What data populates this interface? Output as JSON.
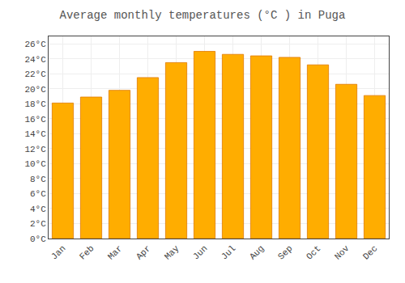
{
  "chart_data": {
    "type": "bar",
    "title": "Average monthly temperatures (°C ) in Puga",
    "categories": [
      "Jan",
      "Feb",
      "Mar",
      "Apr",
      "May",
      "Jun",
      "Jul",
      "Aug",
      "Sep",
      "Oct",
      "Nov",
      "Dec"
    ],
    "values": [
      18.1,
      18.9,
      19.8,
      21.5,
      23.5,
      25.0,
      24.6,
      24.4,
      24.2,
      23.2,
      20.6,
      19.1
    ],
    "color": "#FFAD00",
    "ylim": [
      0,
      27
    ],
    "yticks": [
      {
        "value": 0,
        "label": "0°C"
      },
      {
        "value": 2,
        "label": "2°C"
      },
      {
        "value": 4,
        "label": "4°C"
      },
      {
        "value": 6,
        "label": "6°C"
      },
      {
        "value": 8,
        "label": "8°C"
      },
      {
        "value": 10,
        "label": "10°C"
      },
      {
        "value": 12,
        "label": "12°C"
      },
      {
        "value": 14,
        "label": "14°C"
      },
      {
        "value": 16,
        "label": "16°C"
      },
      {
        "value": 18,
        "label": "18°C"
      },
      {
        "value": 20,
        "label": "20°C"
      },
      {
        "value": 22,
        "label": "22°C"
      },
      {
        "value": 24,
        "label": "24°C"
      },
      {
        "value": 26,
        "label": "26°C"
      }
    ],
    "grid": true
  }
}
